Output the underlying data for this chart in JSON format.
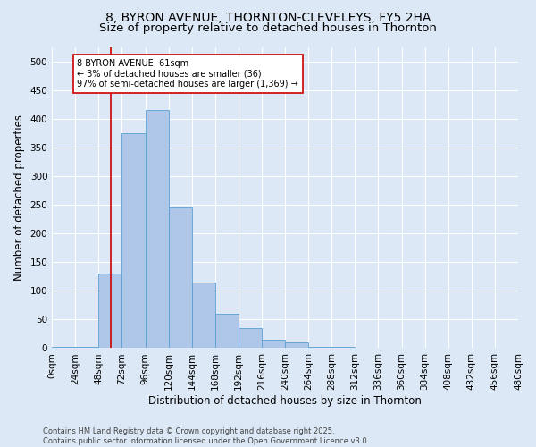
{
  "title": "8, BYRON AVENUE, THORNTON-CLEVELEYS, FY5 2HA",
  "subtitle": "Size of property relative to detached houses in Thornton",
  "xlabel": "Distribution of detached houses by size in Thornton",
  "ylabel": "Number of detached properties",
  "footer": "Contains HM Land Registry data © Crown copyright and database right 2025.\nContains public sector information licensed under the Open Government Licence v3.0.",
  "bin_edges": [
    0,
    24,
    48,
    72,
    96,
    120,
    144,
    168,
    192,
    216,
    240,
    264,
    288,
    312,
    336,
    360,
    384,
    408,
    432,
    456,
    480
  ],
  "bin_labels": [
    "0sqm",
    "24sqm",
    "48sqm",
    "72sqm",
    "96sqm",
    "120sqm",
    "144sqm",
    "168sqm",
    "192sqm",
    "216sqm",
    "240sqm",
    "264sqm",
    "288sqm",
    "312sqm",
    "336sqm",
    "360sqm",
    "384sqm",
    "408sqm",
    "432sqm",
    "456sqm",
    "480sqm"
  ],
  "bar_heights": [
    2,
    2,
    130,
    375,
    415,
    245,
    115,
    60,
    35,
    15,
    10,
    3,
    2,
    0,
    0,
    0,
    0,
    0,
    0,
    0
  ],
  "bar_color": "#aec6e8",
  "bar_edge_color": "#5a9fd4",
  "property_size": 61,
  "vline_color": "#cc0000",
  "annotation_text": "8 BYRON AVENUE: 61sqm\n← 3% of detached houses are smaller (36)\n97% of semi-detached houses are larger (1,369) →",
  "annotation_box_color": "#ffffff",
  "annotation_box_edge": "#cc0000",
  "ylim": [
    0,
    525
  ],
  "yticks": [
    0,
    50,
    100,
    150,
    200,
    250,
    300,
    350,
    400,
    450,
    500
  ],
  "background_color": "#dce8f5",
  "plot_bg_color": "#dce8f5",
  "title_fontsize": 10,
  "subtitle_fontsize": 9.5,
  "axis_fontsize": 8.5,
  "tick_fontsize": 7.5,
  "footer_fontsize": 6,
  "annotation_fontsize": 7
}
